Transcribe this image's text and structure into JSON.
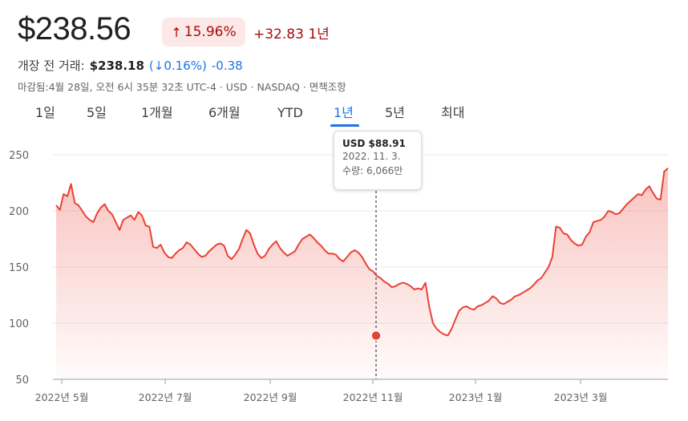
{
  "header": {
    "price": "$238.56",
    "pct_change": "15.96%",
    "pct_arrow": "up-arrow",
    "abs_change": "+32.83 1년"
  },
  "premarket": {
    "label": "개장 전 거래:",
    "price": "$238.18",
    "pct": "(↓0.16%)",
    "change": "-0.38"
  },
  "meta": "마감됨:4월 28일, 오전 6시 35분 32초 UTC-4 · USD · NASDAQ · 면책조항",
  "tabs": [
    {
      "label": "1일",
      "active": false
    },
    {
      "label": "5일",
      "active": false
    },
    {
      "label": "1개월",
      "active": false
    },
    {
      "label": "6개월",
      "active": false
    },
    {
      "label": "YTD",
      "active": false
    },
    {
      "label": "1년",
      "active": true
    },
    {
      "label": "5년",
      "active": false
    },
    {
      "label": "최대",
      "active": false
    }
  ],
  "tooltip": {
    "price": "USD $88.91",
    "date": "2022. 11. 3.",
    "volume": "수량: 6,066만"
  },
  "colors": {
    "line": "#e94235",
    "down": "#a50e0e",
    "accent": "#1a73e8"
  },
  "chart_data": {
    "type": "area",
    "title": "",
    "ylim": [
      50,
      250
    ],
    "yticks": [
      50,
      100,
      150,
      200,
      250
    ],
    "grid": true,
    "xtick_labels": [
      "2022년 5월",
      "2022년 7월",
      "2022년 9월",
      "2022년 11월",
      "2023년 1월",
      "2023년 3월"
    ],
    "highlight": {
      "date": "2022. 11. 3.",
      "value": 88.91
    },
    "series": [
      {
        "values": [
          205,
          201,
          215,
          213,
          224,
          207,
          205,
          200,
          195,
          192,
          190,
          198,
          203,
          206,
          200,
          197,
          190,
          183,
          192,
          194,
          196,
          192,
          199,
          196,
          187,
          186,
          168,
          167,
          170,
          163,
          159,
          158,
          162,
          165,
          167,
          172,
          170,
          166,
          162,
          159,
          160,
          164,
          167,
          170,
          171,
          169,
          160,
          157,
          161,
          166,
          175,
          183,
          180,
          170,
          162,
          158,
          160,
          166,
          170,
          173,
          167,
          163,
          160,
          162,
          164,
          170,
          175,
          177,
          179,
          176,
          172,
          169,
          165,
          162,
          162,
          161,
          157,
          155,
          159,
          163,
          165,
          163,
          159,
          153,
          148,
          146,
          142,
          140,
          137,
          135,
          132,
          133,
          135,
          136,
          135,
          133,
          130,
          131,
          130,
          136,
          115,
          100,
          95,
          92,
          90,
          89,
          95,
          103,
          111,
          114,
          115,
          113,
          112,
          115,
          116,
          118,
          120,
          124,
          122,
          118,
          117,
          119,
          121,
          124,
          125,
          127,
          129,
          131,
          134,
          138,
          140,
          145,
          150,
          159,
          186,
          185,
          180,
          179,
          174,
          171,
          169,
          170,
          177,
          181,
          190,
          191,
          192,
          195,
          200,
          199,
          197,
          198,
          202,
          206,
          209,
          212,
          215,
          214,
          219,
          222,
          216,
          211,
          210,
          235,
          238
        ]
      }
    ]
  }
}
